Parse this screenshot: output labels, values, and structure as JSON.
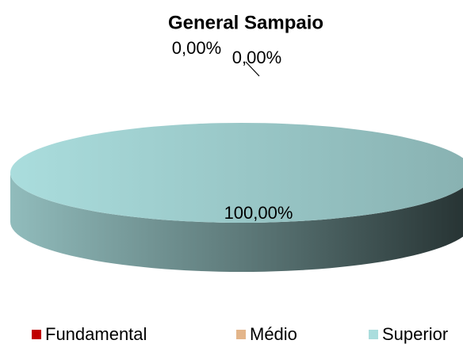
{
  "chart_data": {
    "type": "pie3d",
    "title": "General Sampaio",
    "categories": [
      "Fundamental",
      "Médio",
      "Superior"
    ],
    "values": [
      0,
      0,
      100
    ],
    "value_labels": [
      "0,00%",
      "0,00%",
      "100,00%"
    ],
    "colors": [
      "#c00000",
      "#e3b58a",
      "#aadddd"
    ],
    "legend": "bottom"
  }
}
